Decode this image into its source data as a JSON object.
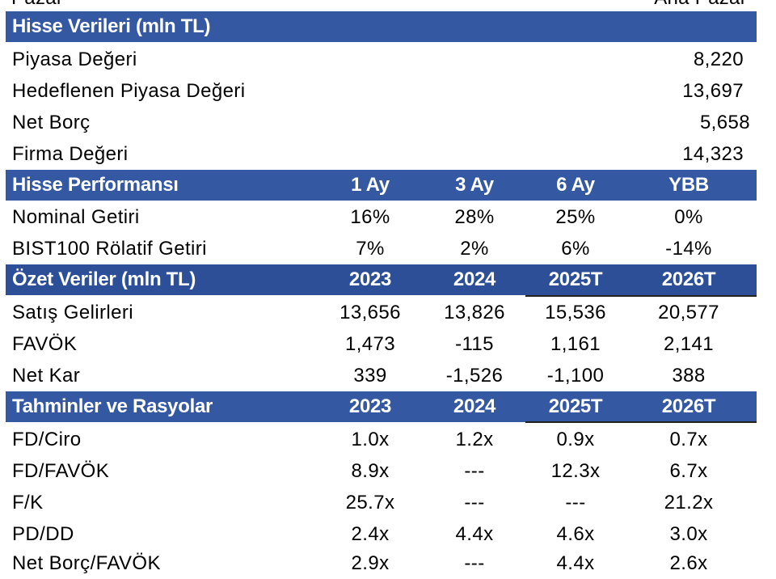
{
  "top_cut": {
    "left": "Pazar",
    "right": "Ana Pazar"
  },
  "hisse_verileri": {
    "title": "Hisse Verileri (mln TL)",
    "rows": [
      {
        "label": "Piyasa Değeri",
        "value": "8,220"
      },
      {
        "label": "Hedeflenen Piyasa Değeri",
        "value": "13,697"
      },
      {
        "label": "Net Borç",
        "value": "5,658"
      },
      {
        "label": "Firma Değeri",
        "value": "14,323"
      }
    ]
  },
  "hisse_performansi": {
    "title": "Hisse Performansı",
    "columns": [
      "1 Ay",
      "3 Ay",
      "6 Ay",
      "YBB"
    ],
    "rows": [
      {
        "label": "Nominal Getiri",
        "values": [
          "16%",
          "28%",
          "25%",
          "0%"
        ]
      },
      {
        "label": "BIST100 Rölatif Getiri",
        "values": [
          "7%",
          "2%",
          "6%",
          "-14%"
        ]
      }
    ]
  },
  "ozet_veriler": {
    "title": "Özet Veriler (mln TL)",
    "columns": [
      "2023",
      "2024",
      "2025T",
      "2026T"
    ],
    "rows": [
      {
        "label": "Satış Gelirleri",
        "values": [
          "13,656",
          "13,826",
          "15,536",
          "20,577"
        ]
      },
      {
        "label": "FAVÖK",
        "values": [
          "1,473",
          "-115",
          "1,161",
          "2,141"
        ]
      },
      {
        "label": "Net Kar",
        "values": [
          "339",
          "-1,526",
          "-1,100",
          "388"
        ]
      }
    ]
  },
  "tahminler": {
    "title": "Tahminler ve Rasyolar",
    "columns": [
      "2023",
      "2024",
      "2025T",
      "2026T"
    ],
    "rows": [
      {
        "label": "FD/Ciro",
        "values": [
          "1.0x",
          "1.2x",
          "0.9x",
          "0.7x"
        ]
      },
      {
        "label": "FD/FAVÖK",
        "values": [
          "8.9x",
          "---",
          "12.3x",
          "6.7x"
        ]
      },
      {
        "label": "F/K",
        "values": [
          "25.7x",
          "---",
          "---",
          "21.2x"
        ]
      },
      {
        "label": "PD/DD",
        "values": [
          "2.4x",
          "4.4x",
          "4.6x",
          "3.0x"
        ]
      },
      {
        "label": "Net Borç/FAVÖK",
        "values": [
          "2.9x",
          "---",
          "4.4x",
          "2.6x"
        ]
      }
    ]
  },
  "colors": {
    "header_bg": "#3558a3",
    "header_text": "#ffffff"
  }
}
